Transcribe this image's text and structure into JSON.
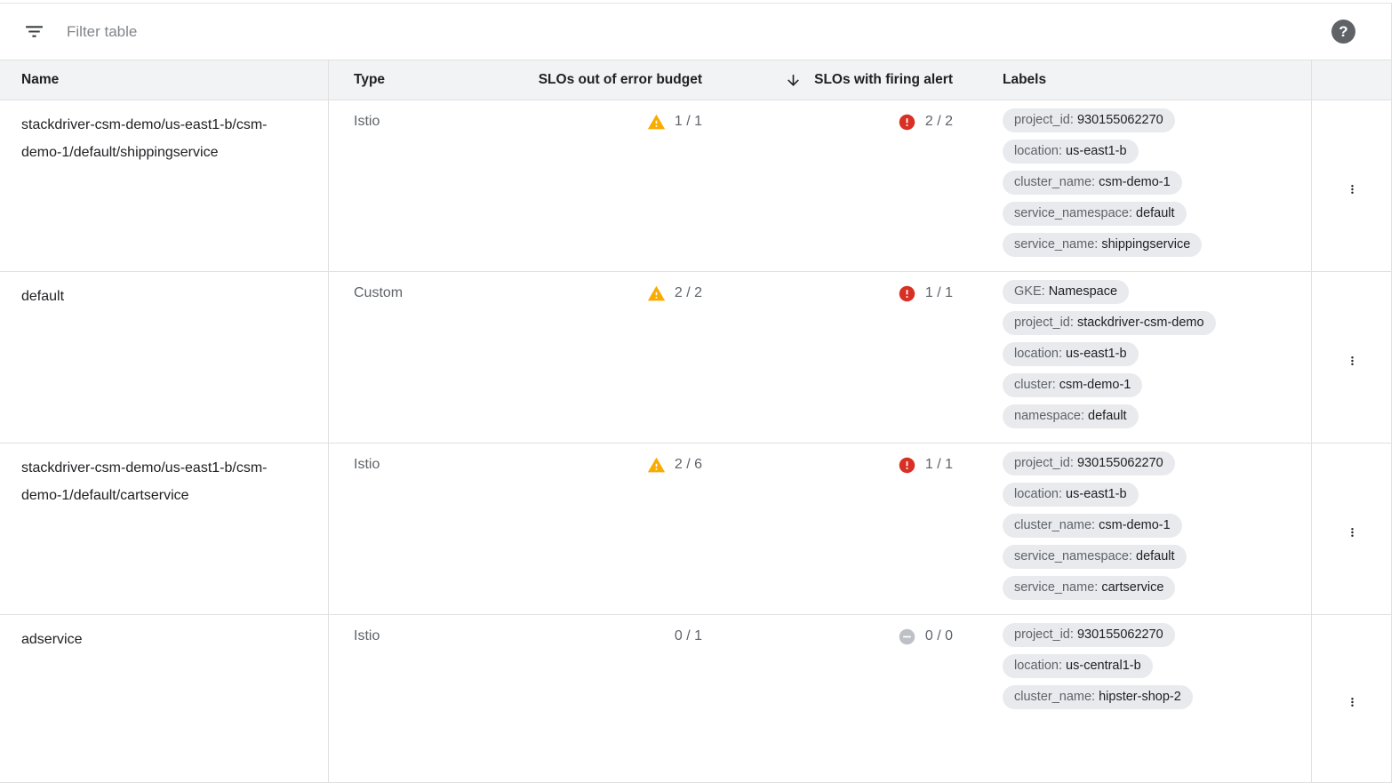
{
  "toolbar": {
    "filter_placeholder": "Filter table",
    "help_label": "?"
  },
  "table": {
    "columns": [
      "Name",
      "Type",
      "SLOs out of error budget",
      "SLOs with firing alert",
      "Labels"
    ],
    "sort": {
      "column": "SLOs with firing alert",
      "direction": "descending",
      "arrow": "↓"
    },
    "rows": [
      {
        "name": "stackdriver-csm-demo/us-east1-b/csm-demo-1/default/shippingservice",
        "type": "Istio",
        "slos_out_of_error_budget": {
          "display": "1 / 1",
          "status": "warning"
        },
        "slos_with_firing_alert": {
          "display": "2 / 2",
          "status": "error"
        },
        "labels": [
          {
            "key": "project_id",
            "value": "930155062270"
          },
          {
            "key": "location",
            "value": "us-east1-b"
          },
          {
            "key": "cluster_name",
            "value": "csm-demo-1"
          },
          {
            "key": "service_namespace",
            "value": "default"
          },
          {
            "key": "service_name",
            "value": "shippingservice"
          }
        ]
      },
      {
        "name": "default",
        "type": "Custom",
        "slos_out_of_error_budget": {
          "display": "2 / 2",
          "status": "warning"
        },
        "slos_with_firing_alert": {
          "display": "1 / 1",
          "status": "error"
        },
        "labels": [
          {
            "key": "GKE",
            "value": "Namespace"
          },
          {
            "key": "project_id",
            "value": "stackdriver-csm-demo"
          },
          {
            "key": "location",
            "value": "us-east1-b"
          },
          {
            "key": "cluster",
            "value": "csm-demo-1"
          },
          {
            "key": "namespace",
            "value": "default"
          }
        ]
      },
      {
        "name": "stackdriver-csm-demo/us-east1-b/csm-demo-1/default/cartservice",
        "type": "Istio",
        "slos_out_of_error_budget": {
          "display": "2 / 6",
          "status": "warning"
        },
        "slos_with_firing_alert": {
          "display": "1 / 1",
          "status": "error"
        },
        "labels": [
          {
            "key": "project_id",
            "value": "930155062270"
          },
          {
            "key": "location",
            "value": "us-east1-b"
          },
          {
            "key": "cluster_name",
            "value": "csm-demo-1"
          },
          {
            "key": "service_namespace",
            "value": "default"
          },
          {
            "key": "service_name",
            "value": "cartservice"
          }
        ]
      },
      {
        "name": "adservice",
        "type": "Istio",
        "slos_out_of_error_budget": {
          "display": "0 / 1",
          "status": "none"
        },
        "slos_with_firing_alert": {
          "display": "0 / 0",
          "status": "neutral"
        },
        "labels": [
          {
            "key": "project_id",
            "value": "930155062270"
          },
          {
            "key": "location",
            "value": "us-central1-b"
          },
          {
            "key": "cluster_name",
            "value": "hipster-shop-2"
          }
        ]
      }
    ]
  },
  "icons": {
    "filter": "filter-list-icon",
    "help": "help-icon",
    "sort_desc": "arrow-down-icon",
    "warning": "warning-triangle-icon",
    "error": "error-circle-icon",
    "neutral": "no-alert-icon",
    "row_menu": "vertical-dots-icon"
  },
  "colors": {
    "warning": "#F9AB00",
    "error": "#D93025",
    "neutral": "#BDC1C6",
    "header_bg": "#F1F3F4",
    "pill_bg": "#E8EAED",
    "border": "#E0E0E0",
    "text_primary": "#202124",
    "text_secondary": "#5F6368"
  }
}
